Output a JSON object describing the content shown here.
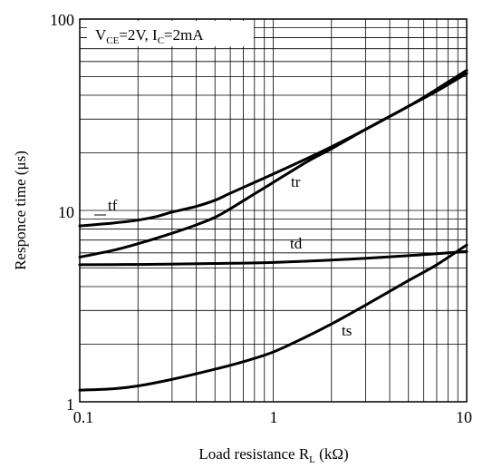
{
  "chart_data": {
    "type": "line",
    "xscale": "log",
    "yscale": "log",
    "xlim": [
      0.1,
      10
    ],
    "ylim": [
      1,
      100
    ],
    "grid": true,
    "xlabel_main": "Load resistance R",
    "xlabel_sub": "L",
    "xlabel_unit": " (kΩ)",
    "ylabel": "Responce time (μs)",
    "x_ticks": [
      {
        "value": 0.1,
        "label": "0.1"
      },
      {
        "value": 1,
        "label": "1"
      },
      {
        "value": 10,
        "label": "10"
      }
    ],
    "y_ticks": [
      {
        "value": 1,
        "label": "1"
      },
      {
        "value": 10,
        "label": "10"
      },
      {
        "value": 100,
        "label": "100"
      }
    ],
    "annotation": {
      "v_main": "V",
      "v_sub": "CE",
      "v_rest": "=2V, I",
      "i_sub": "C",
      "i_rest": "=2mA"
    },
    "series": [
      {
        "name": "tf",
        "x": [
          0.1,
          0.15,
          0.2,
          0.25,
          0.3,
          0.4,
          0.5,
          0.6,
          0.8,
          1,
          1.5,
          2,
          3,
          5,
          7,
          10
        ],
        "y": [
          8.3,
          8.6,
          8.9,
          9.3,
          9.8,
          10.5,
          11.3,
          12.3,
          14,
          15.5,
          18.7,
          21.5,
          26.5,
          35,
          42,
          52
        ]
      },
      {
        "name": "tr",
        "x": [
          0.1,
          0.15,
          0.2,
          0.3,
          0.4,
          0.5,
          0.6,
          0.8,
          1,
          1.5,
          2,
          3,
          5,
          7,
          10
        ],
        "y": [
          5.7,
          6.2,
          6.7,
          7.6,
          8.4,
          9.2,
          10.2,
          12.2,
          14,
          18,
          21,
          26.5,
          35,
          43,
          54
        ]
      },
      {
        "name": "td",
        "x": [
          0.1,
          0.2,
          0.5,
          1,
          2,
          5,
          10
        ],
        "y": [
          5.2,
          5.22,
          5.28,
          5.35,
          5.5,
          5.8,
          6.1
        ]
      },
      {
        "name": "ts",
        "x": [
          0.1,
          0.15,
          0.2,
          0.3,
          0.5,
          0.7,
          1,
          1.5,
          2,
          3,
          5,
          7,
          10
        ],
        "y": [
          1.15,
          1.17,
          1.21,
          1.31,
          1.48,
          1.62,
          1.82,
          2.2,
          2.55,
          3.2,
          4.3,
          5.2,
          6.6
        ]
      }
    ],
    "curve_labels": [
      {
        "series": "tf",
        "text": "tf"
      },
      {
        "series": "tr",
        "text": "tr"
      },
      {
        "series": "td",
        "text": "td"
      },
      {
        "series": "ts",
        "text": "ts"
      }
    ]
  }
}
